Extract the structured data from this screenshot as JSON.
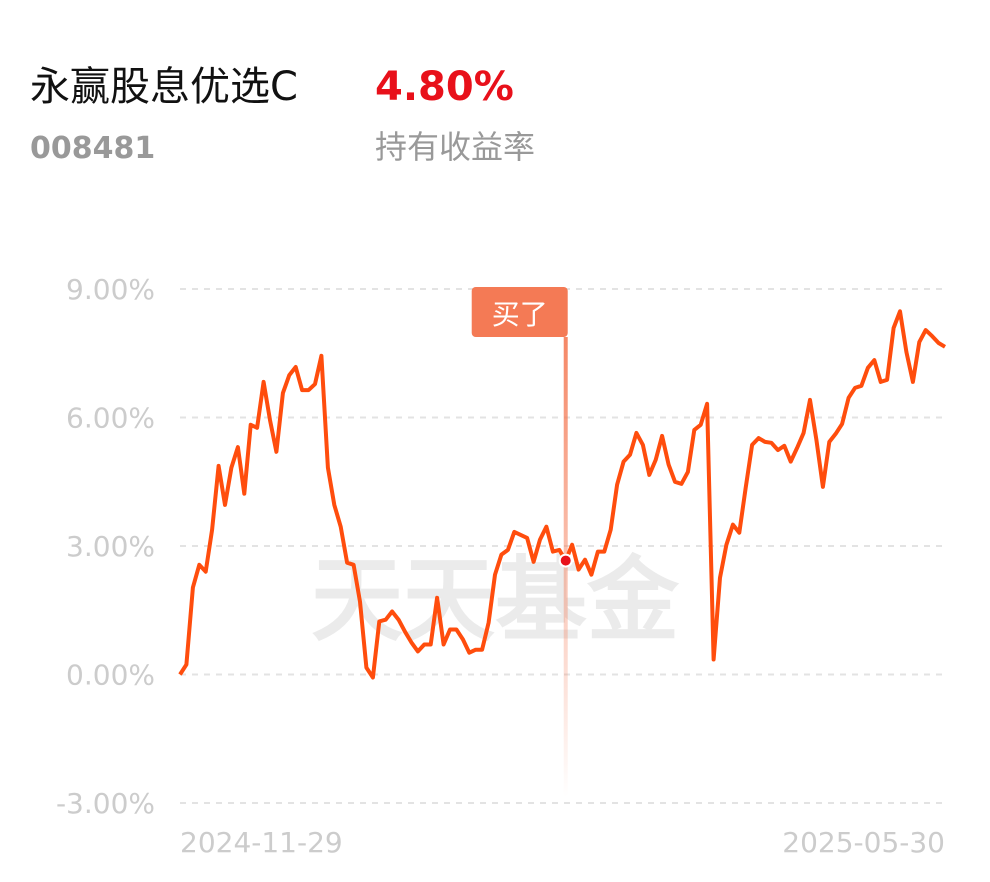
{
  "header": {
    "name": "永赢股息优选C",
    "return": "4.80%",
    "code": "008481",
    "return_label": "持有收益率"
  },
  "watermark": "天天基金",
  "chart_data": {
    "type": "line",
    "categories": [
      "2024-11-29",
      null,
      null,
      null,
      null,
      null,
      null,
      null,
      null,
      null,
      null,
      null,
      null,
      null,
      null,
      null,
      null,
      null,
      null,
      null,
      null,
      null,
      null,
      null,
      null,
      null,
      null,
      null,
      null,
      null,
      null,
      null,
      null,
      null,
      null,
      null,
      null,
      null,
      null,
      null,
      null,
      null,
      null,
      null,
      null,
      null,
      null,
      null,
      null,
      null,
      null,
      null,
      null,
      null,
      null,
      null,
      null,
      null,
      null,
      null,
      null,
      null,
      null,
      null,
      null,
      null,
      null,
      null,
      null,
      null,
      null,
      null,
      null,
      null,
      null,
      null,
      null,
      null,
      null,
      null,
      null,
      null,
      null,
      null,
      null,
      null,
      null,
      null,
      null,
      null,
      null,
      null,
      null,
      null,
      null,
      null,
      null,
      null,
      null,
      null,
      null,
      null,
      null,
      null,
      null,
      null,
      null,
      null,
      null,
      null,
      null,
      null,
      null,
      null,
      null,
      null,
      null,
      null,
      null,
      "2025-05-30"
    ],
    "series": [
      {
        "color": "#ff4d0d",
        "values": [
          0,
          0.23,
          2.03,
          2.56,
          2.4,
          3.38,
          4.87,
          3.96,
          4.83,
          5.31,
          4.22,
          5.83,
          5.76,
          6.83,
          5.94,
          5.2,
          6.57,
          6.99,
          7.18,
          6.64,
          6.64,
          6.78,
          7.44,
          4.83,
          3.96,
          3.45,
          2.61,
          2.56,
          1.7,
          0.16,
          -0.07,
          1.24,
          1.28,
          1.47,
          1.28,
          1.0,
          0.75,
          0.54,
          0.7,
          0.7,
          1.79,
          0.7,
          1.05,
          1.05,
          0.82,
          0.51,
          0.58,
          0.58,
          1.21,
          2.33,
          2.8,
          2.91,
          3.33,
          3.26,
          3.19,
          2.63,
          3.15,
          3.45,
          2.87,
          2.91,
          2.66,
          3.03,
          2.45,
          2.68,
          2.33,
          2.87,
          2.87,
          3.38,
          4.43,
          4.97,
          5.13,
          5.64,
          5.36,
          4.66,
          5.01,
          5.57,
          4.9,
          4.5,
          4.45,
          4.73,
          5.71,
          5.83,
          6.32,
          0.35,
          2.26,
          3.03,
          3.5,
          3.31,
          4.36,
          5.36,
          5.52,
          5.43,
          5.41,
          5.24,
          5.34,
          4.97,
          5.29,
          5.64,
          6.41,
          5.48,
          4.38,
          5.43,
          5.62,
          5.85,
          6.46,
          6.69,
          6.74,
          7.16,
          7.34,
          6.83,
          6.88,
          8.09,
          8.48,
          7.53,
          6.83,
          7.76,
          8.04,
          7.9,
          7.74,
          7.65
        ]
      }
    ],
    "ylim": [
      -3,
      9
    ],
    "yticks": [
      {
        "value": 9,
        "label": "9.00%"
      },
      {
        "value": 6,
        "label": "6.00%"
      },
      {
        "value": 3,
        "label": "3.00%"
      },
      {
        "value": 0,
        "label": "0.00%"
      },
      {
        "value": -3,
        "label": "-3.00%"
      }
    ],
    "grid": true,
    "annotations": [
      {
        "text": "买了",
        "at": 60
      }
    ]
  }
}
